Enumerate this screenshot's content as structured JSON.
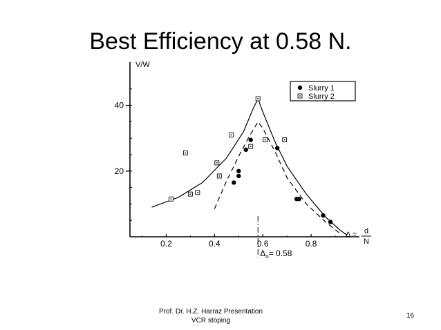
{
  "slide": {
    "title": "Best Efficiency at 0.58 N.",
    "footer_line1": "Prof. Dr. H.Z. Harraz Presentation",
    "footer_line2": "VCR stoping",
    "page_number": "16"
  },
  "chart_data": {
    "type": "scatter",
    "ylabel": "V/W",
    "xlabel_prefix": "Δ =",
    "xlabel_num": "d",
    "xlabel_den": "N",
    "xlim": [
      0.05,
      1.0
    ],
    "ylim": [
      0,
      50
    ],
    "x_ticks": [
      0.2,
      0.4,
      0.6,
      0.8
    ],
    "x_tick_labels": [
      "0.2",
      "0.4",
      "0.6",
      "0.8"
    ],
    "y_ticks": [
      20,
      40
    ],
    "y_tick_labels": [
      "20",
      "40"
    ],
    "annotation": {
      "x": 0.58,
      "label_main": "Δ",
      "label_sub": "o",
      "label_value": "= 0.58"
    },
    "legend_position": "top-right",
    "series": [
      {
        "name": "Slurry 1",
        "marker": "filled-circle",
        "points": [
          [
            0.48,
            16.5
          ],
          [
            0.5,
            18.5
          ],
          [
            0.5,
            20
          ],
          [
            0.53,
            26.5
          ],
          [
            0.55,
            29.5
          ],
          [
            0.66,
            27
          ],
          [
            0.74,
            11.5
          ],
          [
            0.75,
            11.5
          ],
          [
            0.85,
            6.5
          ],
          [
            0.88,
            4.5
          ]
        ]
      },
      {
        "name": "Slurry 2",
        "marker": "open-square-dot",
        "points": [
          [
            0.22,
            11.5
          ],
          [
            0.28,
            25.5
          ],
          [
            0.3,
            13
          ],
          [
            0.33,
            13.5
          ],
          [
            0.41,
            22.5
          ],
          [
            0.42,
            18.5
          ],
          [
            0.47,
            31
          ],
          [
            0.55,
            27.5
          ],
          [
            0.58,
            42
          ],
          [
            0.61,
            29.5
          ],
          [
            0.69,
            29.5
          ]
        ]
      }
    ],
    "curves": [
      {
        "style": "solid",
        "points": [
          [
            0.14,
            9
          ],
          [
            0.25,
            12
          ],
          [
            0.35,
            16.5
          ],
          [
            0.45,
            24
          ],
          [
            0.52,
            32
          ],
          [
            0.56,
            39
          ],
          [
            0.58,
            42
          ],
          [
            0.6,
            38
          ],
          [
            0.65,
            29
          ],
          [
            0.7,
            21.5
          ],
          [
            0.78,
            13
          ],
          [
            0.86,
            6
          ],
          [
            0.92,
            2
          ],
          [
            0.95,
            0.5
          ]
        ]
      },
      {
        "style": "dashed",
        "points": [
          [
            0.4,
            8.5
          ],
          [
            0.45,
            17
          ],
          [
            0.5,
            24.5
          ],
          [
            0.54,
            30
          ],
          [
            0.58,
            35
          ],
          [
            0.6,
            33
          ],
          [
            0.65,
            26
          ],
          [
            0.7,
            18
          ],
          [
            0.78,
            10
          ],
          [
            0.86,
            4.5
          ],
          [
            0.92,
            1
          ]
        ]
      }
    ]
  }
}
